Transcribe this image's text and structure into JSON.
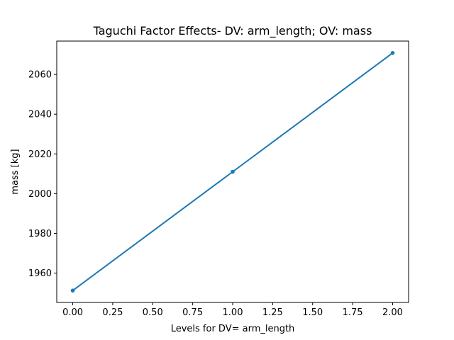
{
  "chart_data": {
    "type": "line",
    "title": "Taguchi Factor Effects- DV: arm_length; OV: mass",
    "xlabel": "Levels for DV= arm_length",
    "ylabel": "mass [kg]",
    "x": [
      0.0,
      1.0,
      2.0
    ],
    "series": [
      {
        "values": [
          1951.2,
          2011.0,
          2070.8
        ],
        "color": "#1f77b4",
        "marker": "circle"
      }
    ],
    "xlim": [
      -0.1,
      2.1
    ],
    "ylim": [
      1945.2,
      2076.8
    ],
    "xticks": [
      0.0,
      0.25,
      0.5,
      0.75,
      1.0,
      1.25,
      1.5,
      1.75,
      2.0
    ],
    "xtick_labels": [
      "0.00",
      "0.25",
      "0.50",
      "0.75",
      "1.00",
      "1.25",
      "1.50",
      "1.75",
      "2.00"
    ],
    "yticks": [
      1960,
      1980,
      2000,
      2020,
      2040,
      2060
    ],
    "ytick_labels": [
      "1960",
      "1980",
      "2000",
      "2020",
      "2040",
      "2060"
    ],
    "grid": false,
    "legend": "none"
  }
}
